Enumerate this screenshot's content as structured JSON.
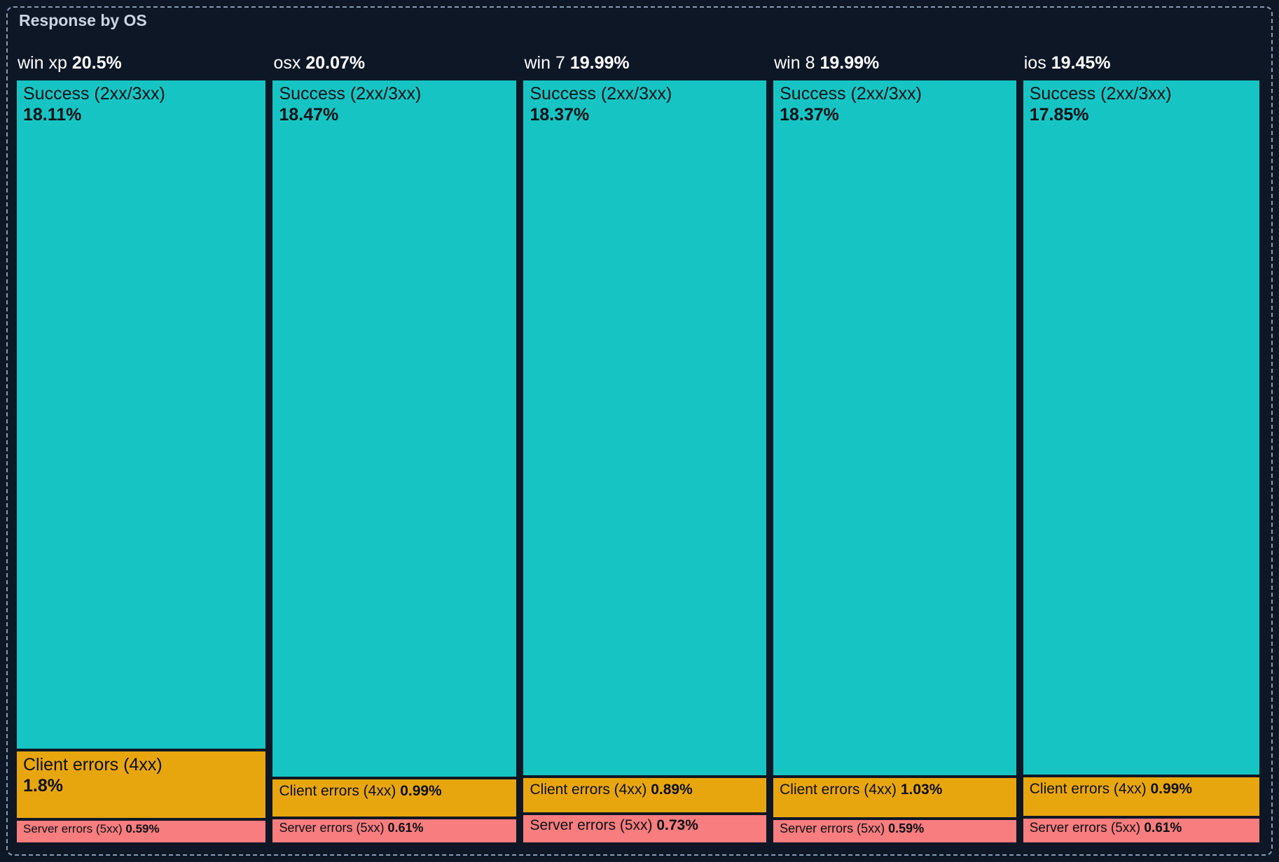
{
  "panel": {
    "title": "Response by OS"
  },
  "chart_data": {
    "type": "treemap",
    "title": "Response by OS",
    "orientation": "columns-by-category, stacked segments per column",
    "units": "percent of total responses",
    "categories": [
      "win xp",
      "osx",
      "win 7",
      "win 8",
      "ios"
    ],
    "category_totals": [
      20.5,
      20.07,
      19.99,
      19.99,
      19.45
    ],
    "segment_names": [
      "Success (2xx/3xx)",
      "Client errors (4xx)",
      "Server errors (5xx)"
    ],
    "segment_keys": [
      "success",
      "client-errors",
      "server-errors"
    ],
    "segment_colors": [
      "#16c5c3",
      "#e8a60e",
      "#f87d7e"
    ],
    "background_color": "#0d1726",
    "border_color": "#8a9ab0",
    "title_color": "#ccd5e2",
    "header_text_color": "#ffffff",
    "label_text_color": "#0c1016",
    "series": [
      {
        "os": "win xp",
        "total": 20.5,
        "total_label": "20.5%",
        "segments": [
          {
            "name": "Success (2xx/3xx)",
            "value": 18.11,
            "label": "18.11%"
          },
          {
            "name": "Client errors (4xx)",
            "value": 1.8,
            "label": "1.8%"
          },
          {
            "name": "Server errors (5xx)",
            "value": 0.59,
            "label": "0.59%"
          }
        ]
      },
      {
        "os": "osx",
        "total": 20.07,
        "total_label": "20.07%",
        "segments": [
          {
            "name": "Success (2xx/3xx)",
            "value": 18.47,
            "label": "18.47%"
          },
          {
            "name": "Client errors (4xx)",
            "value": 0.99,
            "label": "0.99%"
          },
          {
            "name": "Server errors (5xx)",
            "value": 0.61,
            "label": "0.61%"
          }
        ]
      },
      {
        "os": "win 7",
        "total": 19.99,
        "total_label": "19.99%",
        "segments": [
          {
            "name": "Success (2xx/3xx)",
            "value": 18.37,
            "label": "18.37%"
          },
          {
            "name": "Client errors (4xx)",
            "value": 0.89,
            "label": "0.89%"
          },
          {
            "name": "Server errors (5xx)",
            "value": 0.73,
            "label": "0.73%"
          }
        ]
      },
      {
        "os": "win 8",
        "total": 19.99,
        "total_label": "19.99%",
        "segments": [
          {
            "name": "Success (2xx/3xx)",
            "value": 18.37,
            "label": "18.37%"
          },
          {
            "name": "Client errors (4xx)",
            "value": 1.03,
            "label": "1.03%"
          },
          {
            "name": "Server errors (5xx)",
            "value": 0.59,
            "label": "0.59%"
          }
        ]
      },
      {
        "os": "ios",
        "total": 19.45,
        "total_label": "19.45%",
        "segments": [
          {
            "name": "Success (2xx/3xx)",
            "value": 17.85,
            "label": "17.85%"
          },
          {
            "name": "Client errors (4xx)",
            "value": 0.99,
            "label": "0.99%"
          },
          {
            "name": "Server errors (5xx)",
            "value": 0.61,
            "label": "0.61%"
          }
        ]
      }
    ]
  }
}
